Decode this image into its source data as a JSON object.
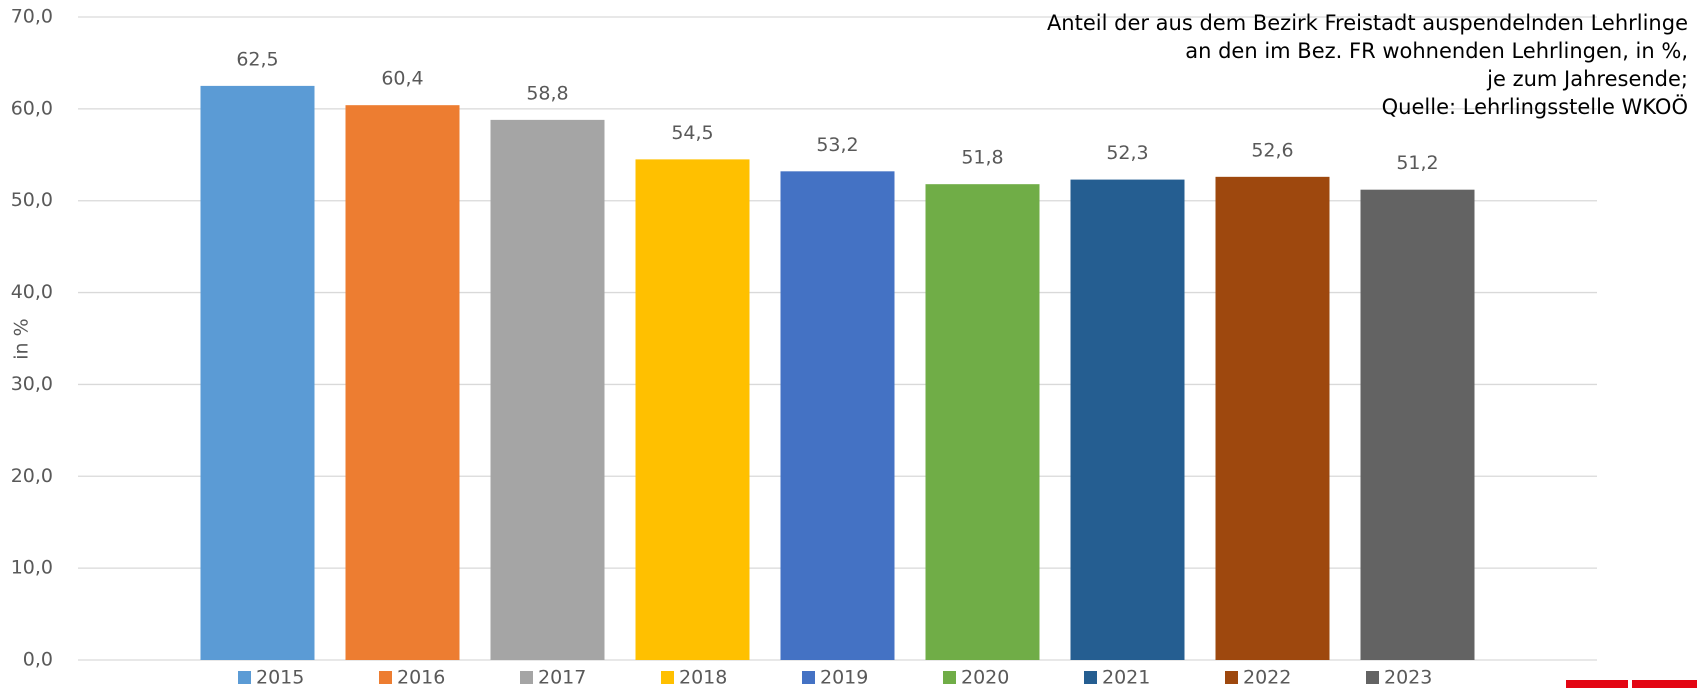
{
  "chart_data": {
    "type": "bar",
    "annotation": [
      "Anteil der aus dem Bezirk Freistadt auspendelnden Lehrlinge",
      "an den im Bez. FR wohnenden Lehrlingen, in %,",
      "je zum Jahresende;",
      "Quelle: Lehrlingsstelle WKOÖ"
    ],
    "y_label": "in %",
    "categories": [
      "2015",
      "2016",
      "2017",
      "2018",
      "2019",
      "2020",
      "2021",
      "2022",
      "2023"
    ],
    "values": [
      62.5,
      60.4,
      58.8,
      54.5,
      53.2,
      51.8,
      52.3,
      52.6,
      51.2
    ],
    "value_labels": [
      "62,5",
      "60,4",
      "58,8",
      "54,5",
      "53,2",
      "51,8",
      "52,3",
      "52,6",
      "51,2"
    ],
    "colors": [
      "#5b9bd5",
      "#ed7d31",
      "#a5a5a5",
      "#ffc000",
      "#4472c4",
      "#70ad47",
      "#255e91",
      "#9e480e",
      "#636363"
    ],
    "ylim": [
      0,
      70
    ],
    "yticks": [
      {
        "value": 0,
        "label": "0,0"
      },
      {
        "value": 10,
        "label": "10,0"
      },
      {
        "value": 20,
        "label": "20,0"
      },
      {
        "value": 30,
        "label": "30,0"
      },
      {
        "value": 40,
        "label": "40,0"
      },
      {
        "value": 50,
        "label": "50,0"
      },
      {
        "value": 60,
        "label": "60,0"
      },
      {
        "value": 70,
        "label": "70,0"
      }
    ],
    "grid": true,
    "legend": "bottom"
  }
}
